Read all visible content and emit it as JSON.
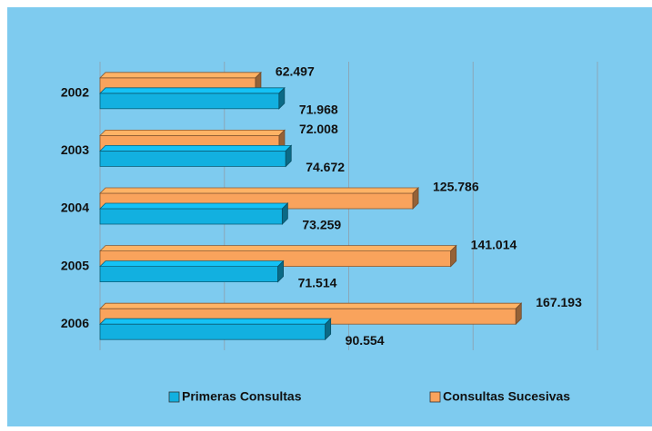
{
  "chart_data": {
    "type": "bar",
    "orientation": "horizontal",
    "categories": [
      "2002",
      "2003",
      "2004",
      "2005",
      "2006"
    ],
    "series": [
      {
        "name": "Primeras Consultas",
        "color": "#12b0e0",
        "values": [
          71968,
          74672,
          73259,
          71514,
          90554
        ],
        "value_labels": [
          "71.968",
          "74.672",
          "73.259",
          "71.514",
          "90.554"
        ]
      },
      {
        "name": "Consultas Sucesivas",
        "color": "#f9a35c",
        "values": [
          62497,
          72008,
          125786,
          141014,
          167193
        ],
        "value_labels": [
          "62.497",
          "72.008",
          "125.786",
          "141.014",
          "167.193"
        ]
      }
    ],
    "xlim": [
      0,
      200000
    ],
    "xticks": [
      50000,
      100000,
      150000,
      200000
    ],
    "grid": true,
    "legend": "bottom"
  }
}
